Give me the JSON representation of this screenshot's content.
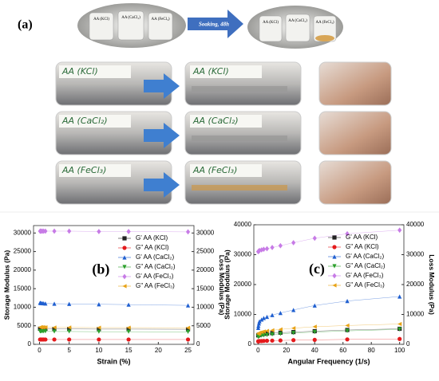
{
  "panel_a": {
    "label": "(a)",
    "vials_before": [
      "AA (KCl)",
      "AA (CaCl₂)",
      "AA (FeCl₃)"
    ],
    "soaking": "Soaking, 48h",
    "vials_after": [
      "AA (KCl)",
      "AA (CaCl₂)",
      "AA (FeCl₃)"
    ],
    "photo_labels": [
      "AA (KCl)",
      "AA (CaCl₂)",
      "AA (FeCl₃)"
    ]
  },
  "chart_data": [
    {
      "type": "scatter",
      "label": "(b)",
      "x_label": "Strain (%)",
      "y_label": "Storage Modulus (Pa)",
      "y2_label": "Loss Modulus (Pa)",
      "x": [
        0.1,
        0.2,
        0.3,
        0.5,
        0.7,
        1,
        2.5,
        5,
        10,
        15,
        25
      ],
      "xlim": [
        -1,
        26
      ],
      "xticks": [
        0,
        5,
        10,
        15,
        20,
        25
      ],
      "ylim": [
        0,
        32000
      ],
      "yticks": [
        0,
        5000,
        10000,
        15000,
        20000,
        25000,
        30000
      ],
      "y2lim": [
        0,
        32000
      ],
      "y2ticks": [
        0,
        5000,
        10000,
        15000,
        20000,
        25000,
        30000
      ],
      "legend": "upper right",
      "series": [
        {
          "name": "G' AA (KCl)",
          "color": "#222222",
          "marker": "square",
          "values": [
            4200,
            4200,
            4200,
            4200,
            4200,
            4200,
            4150,
            4150,
            4100,
            4100,
            4050
          ]
        },
        {
          "name": "G\" AA (KCl)",
          "color": "#e41a1c",
          "marker": "circle",
          "axis": "y2",
          "values": [
            1300,
            1300,
            1300,
            1300,
            1300,
            1300,
            1300,
            1300,
            1300,
            1300,
            1300
          ]
        },
        {
          "name": "G' AA (CaCl₂)",
          "color": "#1f5fd0",
          "marker": "triangle-up",
          "values": [
            11200,
            11150,
            11100,
            11100,
            11050,
            11000,
            10950,
            10900,
            10800,
            10700,
            10500
          ]
        },
        {
          "name": "G\" AA (CaCl₂)",
          "color": "#2ca02c",
          "marker": "triangle-down",
          "axis": "y2",
          "values": [
            3500,
            3500,
            3500,
            3500,
            3500,
            3500,
            3450,
            3450,
            3400,
            3400,
            3350
          ]
        },
        {
          "name": "G' AA (FeCl₃)",
          "color": "#c77be6",
          "marker": "diamond",
          "values": [
            30500,
            30500,
            30500,
            30500,
            30500,
            30500,
            30500,
            30500,
            30400,
            30400,
            30300
          ]
        },
        {
          "name": "G\" AA (FeCl₃)",
          "color": "#e8a317",
          "marker": "triangle-left",
          "axis": "y2",
          "values": [
            4600,
            4600,
            4600,
            4600,
            4600,
            4600,
            4550,
            4550,
            4500,
            4500,
            4450
          ]
        }
      ]
    },
    {
      "type": "scatter",
      "label": "(c)",
      "x_label": "Angular Frequency (1/s)",
      "y_label": "Storage Modulus (Pa)",
      "y2_label": "Loss Modulus (Pa)",
      "x": [
        0.1,
        0.25,
        0.63,
        1,
        2.5,
        4,
        6.3,
        10,
        15.8,
        25,
        40,
        63,
        100
      ],
      "xlim": [
        -3,
        103
      ],
      "xticks": [
        0,
        20,
        40,
        60,
        80,
        100
      ],
      "ylim": [
        0,
        40000
      ],
      "yticks": [
        0,
        10000,
        20000,
        30000,
        40000
      ],
      "y2lim": [
        0,
        40000
      ],
      "y2ticks": [
        0,
        10000,
        20000,
        30000,
        40000
      ],
      "legend": "upper right",
      "series": [
        {
          "name": "G' AA (KCl)",
          "color": "#222222",
          "marker": "square",
          "values": [
            3000,
            3100,
            3200,
            3300,
            3400,
            3500,
            3600,
            3750,
            3900,
            4100,
            4400,
            4800,
            5200
          ]
        },
        {
          "name": "G\" AA (KCl)",
          "color": "#e41a1c",
          "marker": "circle",
          "axis": "y2",
          "values": [
            1000,
            1000,
            1050,
            1100,
            1100,
            1150,
            1200,
            1250,
            1300,
            1400,
            1500,
            1650,
            1800
          ]
        },
        {
          "name": "G' AA (CaCl₂)",
          "color": "#1f5fd0",
          "marker": "triangle-up",
          "values": [
            5500,
            6200,
            7000,
            7700,
            8300,
            8800,
            9200,
            9800,
            10500,
            11500,
            13000,
            14500,
            16000
          ]
        },
        {
          "name": "G\" AA (CaCl₂)",
          "color": "#2ca02c",
          "marker": "triangle-down",
          "axis": "y2",
          "values": [
            2500,
            2600,
            2700,
            2800,
            2900,
            3000,
            3100,
            3300,
            3500,
            3800,
            4100,
            4500,
            5000
          ]
        },
        {
          "name": "G' AA (FeCl₃)",
          "color": "#c77be6",
          "marker": "diamond",
          "values": [
            31000,
            31100,
            31200,
            31400,
            31600,
            31800,
            32000,
            32400,
            33000,
            34000,
            35500,
            37000,
            38200
          ]
        },
        {
          "name": "G\" AA (FeCl₃)",
          "color": "#e8a317",
          "marker": "triangle-left",
          "axis": "y2",
          "values": [
            3500,
            3600,
            3800,
            3900,
            4100,
            4300,
            4500,
            4700,
            5000,
            5400,
            5900,
            6300,
            6800
          ]
        }
      ]
    }
  ]
}
